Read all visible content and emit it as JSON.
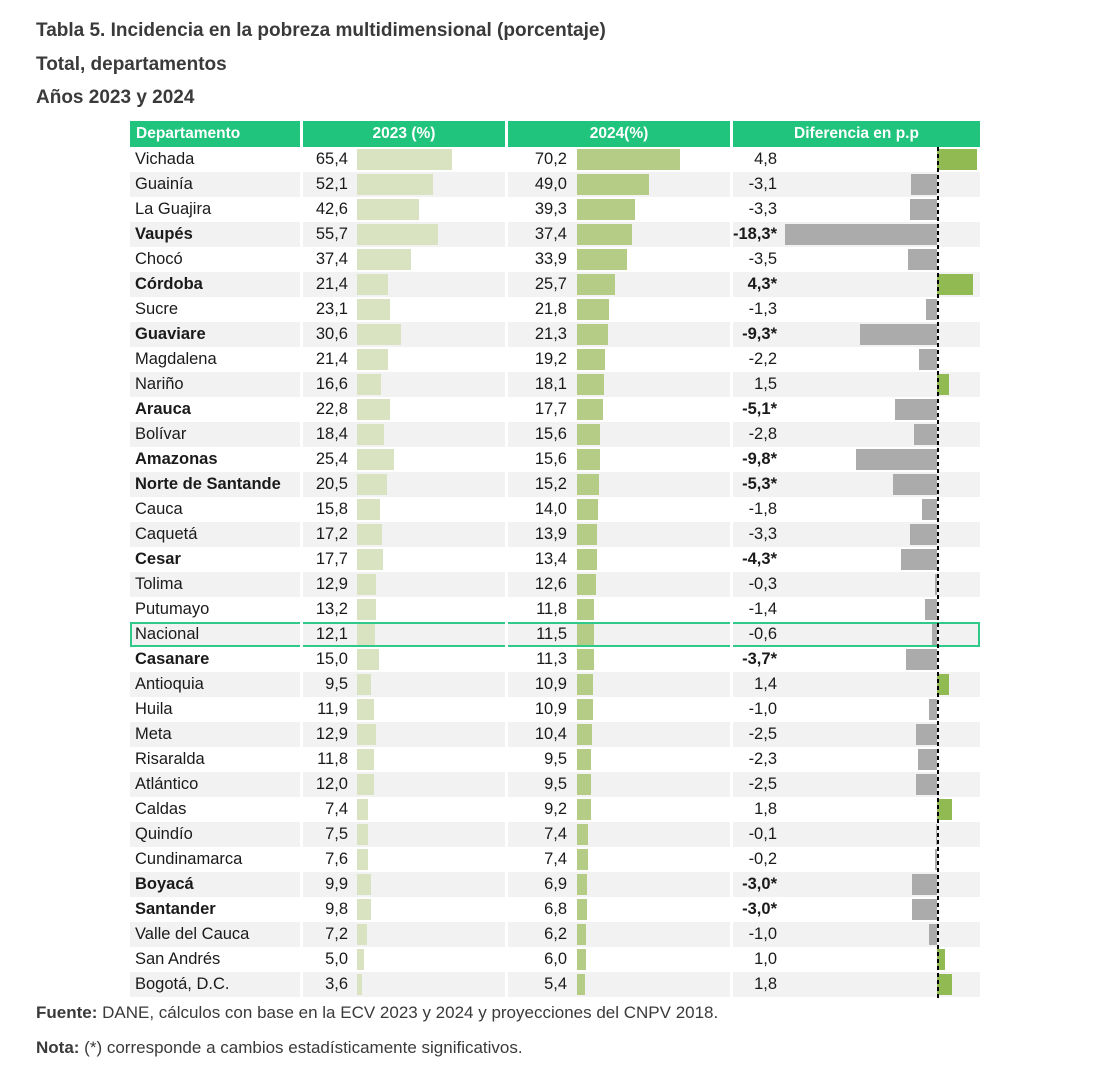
{
  "title": {
    "line1": "Tabla 5. Incidencia en la pobreza multidimensional (porcentaje)",
    "line2": "Total, departamentos",
    "line3": "Años 2023 y 2024"
  },
  "footer": {
    "fuente_label": "Fuente:",
    "fuente_text": " DANE, cálculos con base en la ECV 2023 y 2024 y proyecciones del CNPV 2018.",
    "nota_label": "Nota:",
    "nota_text": " (*) corresponde a cambios estadísticamente significativos."
  },
  "colors": {
    "header_green": "#21c47c",
    "header_text": "#ffffff",
    "body_text": "#1a1a1a",
    "zebra_gray": "#f2f2f2",
    "bar_2023": "#d9e3c1",
    "bar_2024": "#b5cc86",
    "bar_diff_positive": "#92ba52",
    "bar_diff_negative": "#ababab",
    "highlight_border": "#2fc98a",
    "zero_line": "#000000"
  },
  "chart_data": {
    "type": "table",
    "title": "Tabla 5. Incidencia en la pobreza multidimensional (porcentaje)",
    "subtitle": "Total, departamentos — Años 2023 y 2024",
    "columns": [
      "Departamento",
      "2023 (%)",
      "2024(%)",
      "Diferencia en p.p"
    ],
    "bar_axis": {
      "value_bars_range": [
        0,
        100
      ],
      "diff_zero_line": true
    },
    "rows": [
      {
        "departamento": "Vichada",
        "y2023_label": "65,4",
        "y2023": 65.4,
        "y2024_label": "70,2",
        "y2024": 70.2,
        "diff_label": "4,8",
        "diff": 4.8,
        "significant": false,
        "highlight": false
      },
      {
        "departamento": "Guainía",
        "y2023_label": "52,1",
        "y2023": 52.1,
        "y2024_label": "49,0",
        "y2024": 49.0,
        "diff_label": "-3,1",
        "diff": -3.1,
        "significant": false,
        "highlight": false
      },
      {
        "departamento": "La Guajira",
        "y2023_label": "42,6",
        "y2023": 42.6,
        "y2024_label": "39,3",
        "y2024": 39.3,
        "diff_label": "-3,3",
        "diff": -3.3,
        "significant": false,
        "highlight": false
      },
      {
        "departamento": "Vaupés",
        "y2023_label": "55,7",
        "y2023": 55.7,
        "y2024_label": "37,4",
        "y2024": 37.4,
        "diff_label": "-18,3*",
        "diff": -18.3,
        "significant": true,
        "highlight": false
      },
      {
        "departamento": "Chocó",
        "y2023_label": "37,4",
        "y2023": 37.4,
        "y2024_label": "33,9",
        "y2024": 33.9,
        "diff_label": "-3,5",
        "diff": -3.5,
        "significant": false,
        "highlight": false
      },
      {
        "departamento": "Córdoba",
        "y2023_label": "21,4",
        "y2023": 21.4,
        "y2024_label": "25,7",
        "y2024": 25.7,
        "diff_label": "4,3*",
        "diff": 4.3,
        "significant": true,
        "highlight": false
      },
      {
        "departamento": "Sucre",
        "y2023_label": "23,1",
        "y2023": 23.1,
        "y2024_label": "21,8",
        "y2024": 21.8,
        "diff_label": "-1,3",
        "diff": -1.3,
        "significant": false,
        "highlight": false
      },
      {
        "departamento": "Guaviare",
        "y2023_label": "30,6",
        "y2023": 30.6,
        "y2024_label": "21,3",
        "y2024": 21.3,
        "diff_label": "-9,3*",
        "diff": -9.3,
        "significant": true,
        "highlight": false
      },
      {
        "departamento": "Magdalena",
        "y2023_label": "21,4",
        "y2023": 21.4,
        "y2024_label": "19,2",
        "y2024": 19.2,
        "diff_label": "-2,2",
        "diff": -2.2,
        "significant": false,
        "highlight": false
      },
      {
        "departamento": "Nariño",
        "y2023_label": "16,6",
        "y2023": 16.6,
        "y2024_label": "18,1",
        "y2024": 18.1,
        "diff_label": "1,5",
        "diff": 1.5,
        "significant": false,
        "highlight": false
      },
      {
        "departamento": "Arauca",
        "y2023_label": "22,8",
        "y2023": 22.8,
        "y2024_label": "17,7",
        "y2024": 17.7,
        "diff_label": "-5,1*",
        "diff": -5.1,
        "significant": true,
        "highlight": false
      },
      {
        "departamento": "Bolívar",
        "y2023_label": "18,4",
        "y2023": 18.4,
        "y2024_label": "15,6",
        "y2024": 15.6,
        "diff_label": "-2,8",
        "diff": -2.8,
        "significant": false,
        "highlight": false
      },
      {
        "departamento": "Amazonas",
        "y2023_label": "25,4",
        "y2023": 25.4,
        "y2024_label": "15,6",
        "y2024": 15.6,
        "diff_label": "-9,8*",
        "diff": -9.8,
        "significant": true,
        "highlight": false
      },
      {
        "departamento": "Norte de Santande",
        "y2023_label": "20,5",
        "y2023": 20.5,
        "y2024_label": "15,2",
        "y2024": 15.2,
        "diff_label": "-5,3*",
        "diff": -5.3,
        "significant": true,
        "highlight": false
      },
      {
        "departamento": "Cauca",
        "y2023_label": "15,8",
        "y2023": 15.8,
        "y2024_label": "14,0",
        "y2024": 14.0,
        "diff_label": "-1,8",
        "diff": -1.8,
        "significant": false,
        "highlight": false
      },
      {
        "departamento": "Caquetá",
        "y2023_label": "17,2",
        "y2023": 17.2,
        "y2024_label": "13,9",
        "y2024": 13.9,
        "diff_label": "-3,3",
        "diff": -3.3,
        "significant": false,
        "highlight": false
      },
      {
        "departamento": "Cesar",
        "y2023_label": "17,7",
        "y2023": 17.7,
        "y2024_label": "13,4",
        "y2024": 13.4,
        "diff_label": "-4,3*",
        "diff": -4.3,
        "significant": true,
        "highlight": false
      },
      {
        "departamento": "Tolima",
        "y2023_label": "12,9",
        "y2023": 12.9,
        "y2024_label": "12,6",
        "y2024": 12.6,
        "diff_label": "-0,3",
        "diff": -0.3,
        "significant": false,
        "highlight": false
      },
      {
        "departamento": "Putumayo",
        "y2023_label": "13,2",
        "y2023": 13.2,
        "y2024_label": "11,8",
        "y2024": 11.8,
        "diff_label": "-1,4",
        "diff": -1.4,
        "significant": false,
        "highlight": false
      },
      {
        "departamento": "Nacional",
        "y2023_label": "12,1",
        "y2023": 12.1,
        "y2024_label": "11,5",
        "y2024": 11.5,
        "diff_label": "-0,6",
        "diff": -0.6,
        "significant": false,
        "highlight": true
      },
      {
        "departamento": "Casanare",
        "y2023_label": "15,0",
        "y2023": 15.0,
        "y2024_label": "11,3",
        "y2024": 11.3,
        "diff_label": "-3,7*",
        "diff": -3.7,
        "significant": true,
        "highlight": false
      },
      {
        "departamento": "Antioquia",
        "y2023_label": "9,5",
        "y2023": 9.5,
        "y2024_label": "10,9",
        "y2024": 10.9,
        "diff_label": "1,4",
        "diff": 1.4,
        "significant": false,
        "highlight": false
      },
      {
        "departamento": "Huila",
        "y2023_label": "11,9",
        "y2023": 11.9,
        "y2024_label": "10,9",
        "y2024": 10.9,
        "diff_label": "-1,0",
        "diff": -1.0,
        "significant": false,
        "highlight": false
      },
      {
        "departamento": "Meta",
        "y2023_label": "12,9",
        "y2023": 12.9,
        "y2024_label": "10,4",
        "y2024": 10.4,
        "diff_label": "-2,5",
        "diff": -2.5,
        "significant": false,
        "highlight": false
      },
      {
        "departamento": "Risaralda",
        "y2023_label": "11,8",
        "y2023": 11.8,
        "y2024_label": "9,5",
        "y2024": 9.5,
        "diff_label": "-2,3",
        "diff": -2.3,
        "significant": false,
        "highlight": false
      },
      {
        "departamento": "Atlántico",
        "y2023_label": "12,0",
        "y2023": 12.0,
        "y2024_label": "9,5",
        "y2024": 9.5,
        "diff_label": "-2,5",
        "diff": -2.5,
        "significant": false,
        "highlight": false
      },
      {
        "departamento": "Caldas",
        "y2023_label": "7,4",
        "y2023": 7.4,
        "y2024_label": "9,2",
        "y2024": 9.2,
        "diff_label": "1,8",
        "diff": 1.8,
        "significant": false,
        "highlight": false
      },
      {
        "departamento": "Quindío",
        "y2023_label": "7,5",
        "y2023": 7.5,
        "y2024_label": "7,4",
        "y2024": 7.4,
        "diff_label": "-0,1",
        "diff": -0.1,
        "significant": false,
        "highlight": false
      },
      {
        "departamento": "Cundinamarca",
        "y2023_label": "7,6",
        "y2023": 7.6,
        "y2024_label": "7,4",
        "y2024": 7.4,
        "diff_label": "-0,2",
        "diff": -0.2,
        "significant": false,
        "highlight": false
      },
      {
        "departamento": "Boyacá",
        "y2023_label": "9,9",
        "y2023": 9.9,
        "y2024_label": "6,9",
        "y2024": 6.9,
        "diff_label": "-3,0*",
        "diff": -3.0,
        "significant": true,
        "highlight": false
      },
      {
        "departamento": "Santander",
        "y2023_label": "9,8",
        "y2023": 9.8,
        "y2024_label": "6,8",
        "y2024": 6.8,
        "diff_label": "-3,0*",
        "diff": -3.0,
        "significant": true,
        "highlight": false
      },
      {
        "departamento": "Valle del Cauca",
        "y2023_label": "7,2",
        "y2023": 7.2,
        "y2024_label": "6,2",
        "y2024": 6.2,
        "diff_label": "-1,0",
        "diff": -1.0,
        "significant": false,
        "highlight": false
      },
      {
        "departamento": "San Andrés",
        "y2023_label": "5,0",
        "y2023": 5.0,
        "y2024_label": "6,0",
        "y2024": 6.0,
        "diff_label": "1,0",
        "diff": 1.0,
        "significant": false,
        "highlight": false
      },
      {
        "departamento": "Bogotá, D.C.",
        "y2023_label": "3,6",
        "y2023": 3.6,
        "y2024_label": "5,4",
        "y2024": 5.4,
        "diff_label": "1,8",
        "diff": 1.8,
        "significant": false,
        "highlight": false
      }
    ]
  }
}
